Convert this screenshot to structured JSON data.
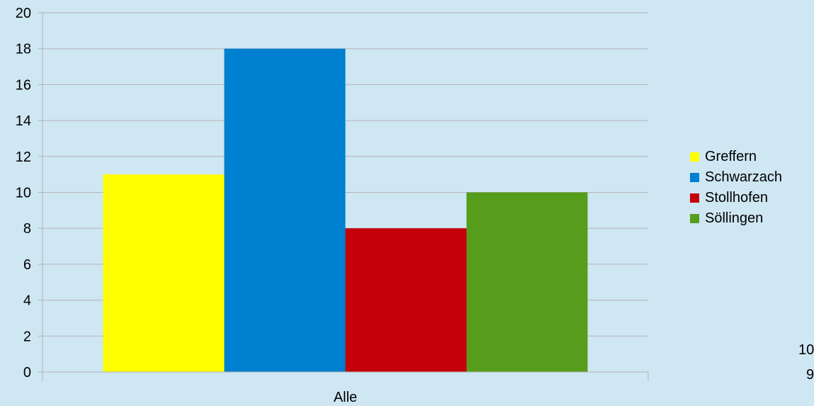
{
  "chart_data": {
    "type": "bar",
    "categories": [
      "Alle"
    ],
    "series": [
      {
        "name": "Greffern",
        "values": [
          11
        ],
        "color": "#ffff00"
      },
      {
        "name": "Schwarzach",
        "values": [
          18
        ],
        "color": "#0080d0"
      },
      {
        "name": "Stollhofen",
        "values": [
          8
        ],
        "color": "#c5000b"
      },
      {
        "name": "Söllingen",
        "values": [
          10
        ],
        "color": "#579d1c"
      }
    ],
    "ylim": [
      0,
      20
    ],
    "yticks": [
      "0",
      "2",
      "4",
      "6",
      "8",
      "10",
      "12",
      "14",
      "16",
      "18",
      "20"
    ],
    "grid": true,
    "legend": "right",
    "title": "",
    "xlabel": "",
    "ylabel": "",
    "colors": {
      "background": "#cfe6f3",
      "gridline": "#b3b3b3"
    }
  },
  "stray_text": {
    "first": "10",
    "second": "9"
  }
}
